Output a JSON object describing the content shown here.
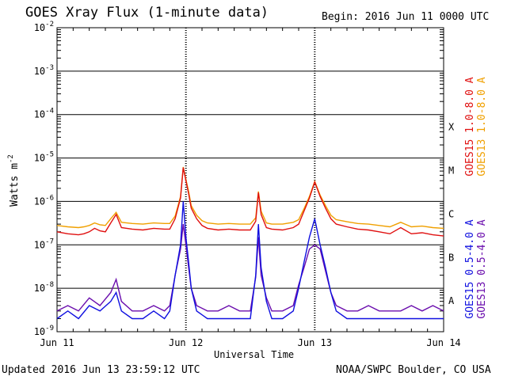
{
  "header": {
    "title": "GOES Xray Flux (1-minute data)",
    "begin": "Begin:  2016 Jun 11 0000 UTC"
  },
  "footer": {
    "updated": "Updated 2016 Jun 13 23:59:12 UTC",
    "credit": "NOAA/SWPC Boulder, CO USA"
  },
  "chart_data": {
    "type": "line",
    "title": "GOES Xray Flux (1-minute data)",
    "xlabel": "Universal Time",
    "ylabel": "Watts m-2",
    "ylabel_main": "Watts m",
    "ylabel_exp": "-2",
    "yscale": "log",
    "ylim": [
      1e-09,
      0.01
    ],
    "xlim": [
      "2016-06-11 00:00",
      "2016-06-14 00:00"
    ],
    "x_ticks": [
      {
        "value": "2016-06-11 00:00",
        "label": "Jun 11"
      },
      {
        "value": "2016-06-12 00:00",
        "label": "Jun 12"
      },
      {
        "value": "2016-06-13 00:00",
        "label": "Jun 13"
      },
      {
        "value": "2016-06-14 00:00",
        "label": "Jun 14"
      }
    ],
    "y_ticks": [
      {
        "exp": -2,
        "label_base": "10",
        "label_exp": "-2"
      },
      {
        "exp": -3,
        "label_base": "10",
        "label_exp": "-3"
      },
      {
        "exp": -4,
        "label_base": "10",
        "label_exp": "-4"
      },
      {
        "exp": -5,
        "label_base": "10",
        "label_exp": "-5"
      },
      {
        "exp": -6,
        "label_base": "10",
        "label_exp": "-6"
      },
      {
        "exp": -7,
        "label_base": "10",
        "label_exp": "-7"
      },
      {
        "exp": -8,
        "label_base": "10",
        "label_exp": "-8"
      },
      {
        "exp": -9,
        "label_base": "10",
        "label_exp": "-9"
      }
    ],
    "flare_classes": [
      {
        "label": "X",
        "exp": -4
      },
      {
        "label": "M",
        "exp": -5
      },
      {
        "label": "C",
        "exp": -6
      },
      {
        "label": "B",
        "exp": -7
      },
      {
        "label": "A",
        "exp": -8
      }
    ],
    "grid": true,
    "legend_position": "right-vertical",
    "series": [
      {
        "name": "GOES15 1.0-8.0 A",
        "color": "#e01010",
        "x": [
          0,
          2,
          4,
          5,
          6,
          7,
          8,
          9,
          10,
          11,
          12,
          14,
          16,
          18,
          20,
          21,
          22,
          23,
          23.5,
          24,
          24.5,
          25,
          26,
          27,
          28,
          30,
          32,
          34,
          36,
          37,
          37.5,
          38,
          39,
          40,
          42,
          44,
          45,
          46,
          47,
          48,
          49,
          50,
          51,
          52,
          54,
          56,
          58,
          60,
          62,
          64,
          66,
          68,
          70,
          72
        ],
        "y": [
          2e-07,
          1.8e-07,
          1.7e-07,
          1.8e-07,
          2e-07,
          2.4e-07,
          2.1e-07,
          2e-07,
          3.2e-07,
          5e-07,
          2.5e-07,
          2.3e-07,
          2.2e-07,
          2.4e-07,
          2.3e-07,
          2.3e-07,
          4e-07,
          1.2e-06,
          6e-06,
          3e-06,
          1.5e-06,
          7e-07,
          4e-07,
          2.8e-07,
          2.4e-07,
          2.2e-07,
          2.3e-07,
          2.2e-07,
          2.2e-07,
          3.5e-07,
          1.6e-06,
          5e-07,
          2.5e-07,
          2.3e-07,
          2.2e-07,
          2.5e-07,
          3e-07,
          6e-07,
          1.2e-06,
          2.8e-06,
          1.3e-06,
          7e-07,
          4e-07,
          3e-07,
          2.6e-07,
          2.3e-07,
          2.2e-07,
          2e-07,
          1.8e-07,
          2.5e-07,
          1.8e-07,
          1.9e-07,
          1.7e-07,
          1.6e-07
        ]
      },
      {
        "name": "GOES13 1.0-8.0 A",
        "color": "#f0a000",
        "x": [
          0,
          2,
          4,
          5,
          6,
          7,
          8,
          9,
          10,
          11,
          12,
          14,
          16,
          18,
          20,
          21,
          22,
          23,
          23.5,
          24,
          24.5,
          25,
          26,
          27,
          28,
          30,
          32,
          34,
          36,
          37,
          37.5,
          38,
          39,
          40,
          42,
          44,
          45,
          46,
          47,
          48,
          49,
          50,
          51,
          52,
          54,
          56,
          58,
          60,
          62,
          64,
          66,
          68,
          70,
          72
        ],
        "y": [
          2.8e-07,
          2.6e-07,
          2.5e-07,
          2.6e-07,
          2.8e-07,
          3.2e-07,
          2.9e-07,
          2.8e-07,
          4e-07,
          5.6e-07,
          3.3e-07,
          3.1e-07,
          3e-07,
          3.2e-07,
          3.1e-07,
          3.1e-07,
          4.6e-07,
          1.3e-06,
          6.2e-06,
          3.2e-06,
          1.7e-06,
          8e-07,
          4.8e-07,
          3.6e-07,
          3.2e-07,
          3e-07,
          3.1e-07,
          3e-07,
          3e-07,
          4.2e-07,
          1.7e-06,
          6e-07,
          3.2e-07,
          3e-07,
          3e-07,
          3.3e-07,
          3.8e-07,
          6.8e-07,
          1.3e-06,
          2.9e-06,
          1.4e-06,
          8e-07,
          4.8e-07,
          3.8e-07,
          3.4e-07,
          3.1e-07,
          3e-07,
          2.8e-07,
          2.6e-07,
          3.3e-07,
          2.6e-07,
          2.7e-07,
          2.5e-07,
          2.4e-07
        ]
      },
      {
        "name": "GOES15 0.5-4.0 A",
        "color": "#1010e0",
        "x": [
          0,
          2,
          4,
          6,
          8,
          10,
          11,
          12,
          14,
          16,
          18,
          20,
          21,
          22,
          23,
          23.5,
          24,
          24.5,
          25,
          26,
          28,
          30,
          32,
          34,
          36,
          37,
          37.5,
          38,
          39,
          40,
          42,
          44,
          45,
          46,
          47,
          48,
          49,
          50,
          51,
          52,
          54,
          56,
          58,
          60,
          62,
          64,
          66,
          68,
          70,
          72
        ],
        "y": [
          2e-09,
          3e-09,
          2e-09,
          4e-09,
          3e-09,
          5e-09,
          8e-09,
          3e-09,
          2e-09,
          2e-09,
          3e-09,
          2e-09,
          3e-09,
          2e-08,
          1e-07,
          1e-06,
          1.5e-07,
          4e-08,
          1e-08,
          3e-09,
          2e-09,
          2e-09,
          2e-09,
          2e-09,
          2e-09,
          2e-08,
          3e-07,
          3e-08,
          5e-09,
          2e-09,
          2e-09,
          3e-09,
          1e-08,
          4e-08,
          1.5e-07,
          4e-07,
          1e-07,
          3e-08,
          8e-09,
          3e-09,
          2e-09,
          2e-09,
          2e-09,
          2e-09,
          2e-09,
          2e-09,
          2e-09,
          2e-09,
          2e-09,
          2e-09
        ]
      },
      {
        "name": "GOES13 0.5-4.0 A",
        "color": "#6a0dad",
        "x": [
          0,
          2,
          4,
          6,
          8,
          10,
          11,
          12,
          14,
          16,
          18,
          20,
          21,
          22,
          23,
          23.5,
          24,
          24.5,
          25,
          26,
          28,
          30,
          32,
          34,
          36,
          37,
          37.5,
          38,
          39,
          40,
          42,
          44,
          45,
          46,
          47,
          48,
          49,
          50,
          51,
          52,
          54,
          56,
          58,
          60,
          62,
          64,
          66,
          68,
          70,
          72
        ],
        "y": [
          3e-09,
          4e-09,
          3e-09,
          6e-09,
          4e-09,
          8e-09,
          1.6e-08,
          5e-09,
          3e-09,
          3e-09,
          4e-09,
          3e-09,
          4e-09,
          2e-08,
          8e-08,
          3e-07,
          1e-07,
          3e-08,
          1e-08,
          4e-09,
          3e-09,
          3e-09,
          4e-09,
          3e-09,
          3e-09,
          1.8e-08,
          1.5e-07,
          2e-08,
          6e-09,
          3e-09,
          3e-09,
          4e-09,
          1.2e-08,
          3e-08,
          8e-08,
          1e-07,
          8e-08,
          2.5e-08,
          8e-09,
          4e-09,
          3e-09,
          3e-09,
          4e-09,
          3e-09,
          3e-09,
          3e-09,
          4e-09,
          3e-09,
          4e-09,
          3e-09
        ]
      }
    ]
  }
}
